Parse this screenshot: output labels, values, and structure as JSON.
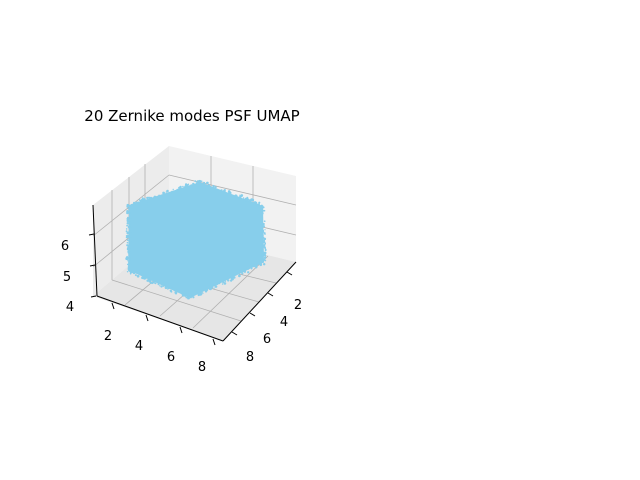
{
  "chart_data": {
    "type": "scatter",
    "projection": "3d",
    "title": "20 Zernike modes PSF UMAP",
    "xlabel": "",
    "ylabel": "",
    "zlabel": "",
    "x_ticks": [
      "2",
      "4",
      "6",
      "8"
    ],
    "y_ticks": [
      "2",
      "4",
      "6",
      "8"
    ],
    "z_ticks": [
      "4",
      "5",
      "6"
    ],
    "xlim": [
      1.5,
      8.8
    ],
    "ylim": [
      1.5,
      8.8
    ],
    "zlim": [
      4,
      6.5
    ],
    "grid": true,
    "legend": "none",
    "series": [
      {
        "color": "#87ceeb",
        "distribution": "dense cube-shaped point cloud",
        "x_range": [
          2.0,
          8.0
        ],
        "y_range": [
          2.0,
          8.0
        ],
        "z_range": [
          4.4,
          6.3
        ],
        "approx_points": 20000
      }
    ]
  }
}
